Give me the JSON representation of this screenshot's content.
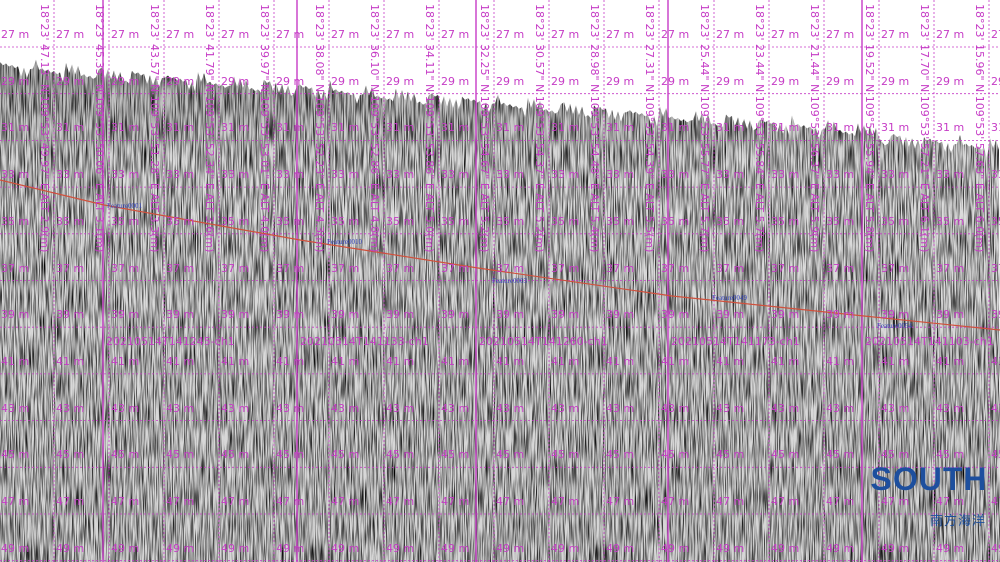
{
  "colors": {
    "grid": "#c63cc6",
    "marker_line": "#c63cc6",
    "feature_line": "#d0503c",
    "feature_text": "#3140b8",
    "logo": "#1d4f9e"
  },
  "depth_labels": [
    "27 m",
    "29 m",
    "31 m",
    "33 m",
    "35 m",
    "37 m",
    "39 m",
    "41 m",
    "43 m",
    "45 m",
    "47 m",
    "49 m"
  ],
  "fix_labels": [
    "18°23' 47.13\" N 109°53' 49.97\" E ALT 2.9(m)",
    "18°23' 45.35\" N 109°53' 50.06\" E ALT 3.1(m)",
    "18°23' 43.57\" N 109°53' 51.28\" E ALT 3.3(m)",
    "18°23' 41.79\" N 109°53' 52.34\" E ALT 3.6(m)",
    "18°23' 39.97\" N 109°53' 53.01\" E ALT 4.0(m)",
    "18°23' 38.08\" N 109°53' 52.23\" E ALT 4.3(m)",
    "18°23' 36.10\" N 109°53' 52.86\" E ALT 4.8(m)",
    "18°23' 34.11\" N 109°53' 53.86\" E ALT 5.0(m)",
    "18°23' 32.25\" N 109°53' 54.67\" E ALT 5.2(m)",
    "18°23' 30.57\" N 109°53' 54.37\" E ALT 5.2(m)",
    "18°23' 28.98\" N 109°53' 54.48\" E ALT 5.4(m)",
    "18°23' 27.31\" N 109°53' 54.39\" E ALT 5.5(m)",
    "18°23' 25.44\" N 109°53' 55.77\" E ALT 5.7(m)",
    "18°23' 23.44\" N 109°53' 55.84\" E ALT 5.7(m)",
    "18°23' 21.44\" N 109°53' 56.37\" E ALT 5.9(m)",
    "18°23' 19.52\" N 109°53' 55.94\" E ALT 5.8(m)",
    "18°23' 17.70\" N 109°53' 57.21\" E ALT 6.1(m)",
    "18°23' 15.96\" N 109°53' 57.63\" E ALT 6.0(m)"
  ],
  "file_markers": [
    "20210514T141245-ch1",
    "20210514T141133-ch1",
    "20210514T141260-ch1",
    "20210514T141173-ch1",
    "20210514T141103-ch1"
  ],
  "features": [
    "Feature0001",
    "Feature0010",
    "Feature0003",
    "Feature0049",
    "Feature0054"
  ],
  "logo": {
    "brand": "SOUTH",
    "sub": "南方海洋"
  }
}
